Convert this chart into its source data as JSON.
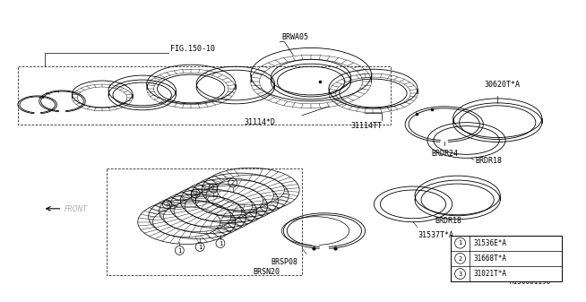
{
  "bg_color": "#ffffff",
  "line_color": "#000000",
  "line_width": 0.6,
  "font_size": 6.0,
  "labels": {
    "fig_ref": "FIG.150-10",
    "brwa05": "BRWA05",
    "brdr24": "BRDR24",
    "brdr18": "BRDR18",
    "brsp08": "BRSP08",
    "brsn20": "BRSN20",
    "code_31114TT": "31114TT",
    "code_31114D": "31114*D",
    "code_30620": "30620T*A",
    "code_31537": "31537T*A",
    "legend1_num": "1",
    "legend2_num": "2",
    "legend3_num": "3",
    "legend1": "31536E*A",
    "legend2": "31668T*A",
    "legend3": "31021T*A",
    "front": "FRONT",
    "diagram_id": "A150001190"
  }
}
